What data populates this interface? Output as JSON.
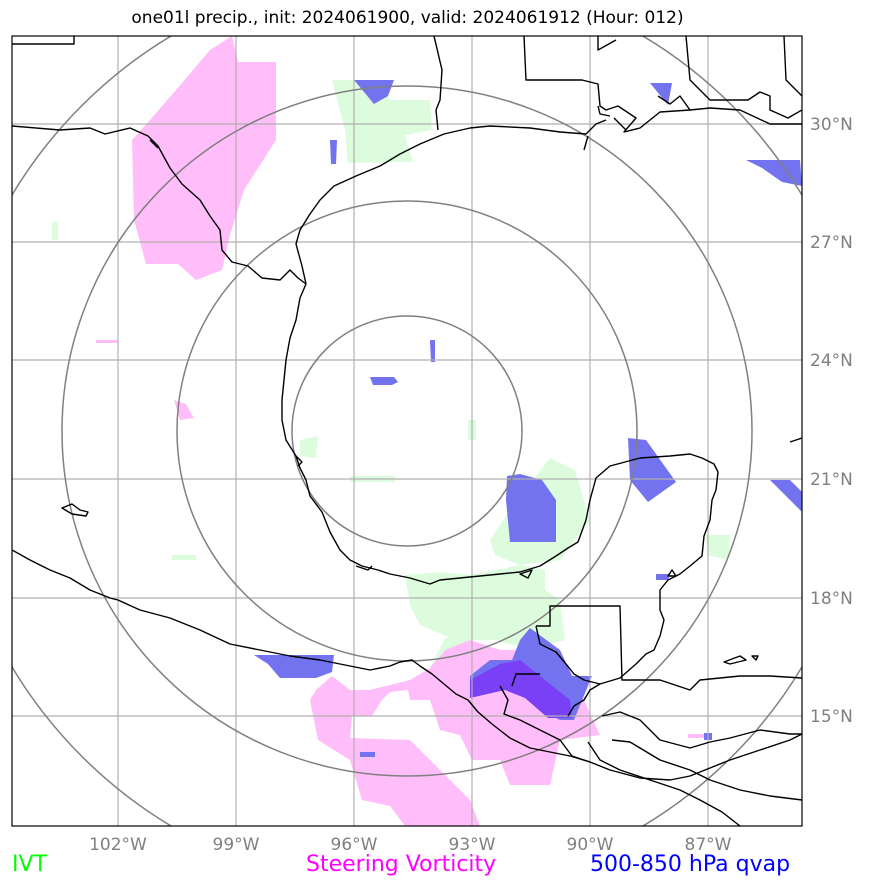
{
  "title": "one01l precip., init: 2024061900, valid: 2024061912 (Hour: 012)",
  "legend": {
    "ivt": {
      "label": "IVT",
      "color": "#00ff00"
    },
    "vorticity": {
      "label": "Steering Vorticity",
      "color": "#ff00ff"
    },
    "qvap": {
      "label": "500-850 hPa qvap",
      "color": "#0000ff"
    }
  },
  "axes": {
    "lon_ticks": [
      "102°W",
      "99°W",
      "96°W",
      "93°W",
      "90°W",
      "87°W"
    ],
    "lat_ticks": [
      "30°N",
      "27°N",
      "24°N",
      "21°N",
      "18°N",
      "15°N"
    ]
  },
  "map": {
    "extent": {
      "lon": [
        -104.7,
        -84.7
      ],
      "lat": [
        12.8,
        32.2
      ]
    },
    "range_rings_center": {
      "lon": -94.3,
      "lat": 22.2
    },
    "range_ring_count": 4,
    "colors": {
      "rings": "#808080",
      "grid": "#b0b0b0",
      "coast": "#000000",
      "ivt_fill": "#ddfcdd",
      "vort_fill": "#ffbdf9",
      "qvap_fill": "#7373ef",
      "overlap": "#7a40f5"
    }
  }
}
